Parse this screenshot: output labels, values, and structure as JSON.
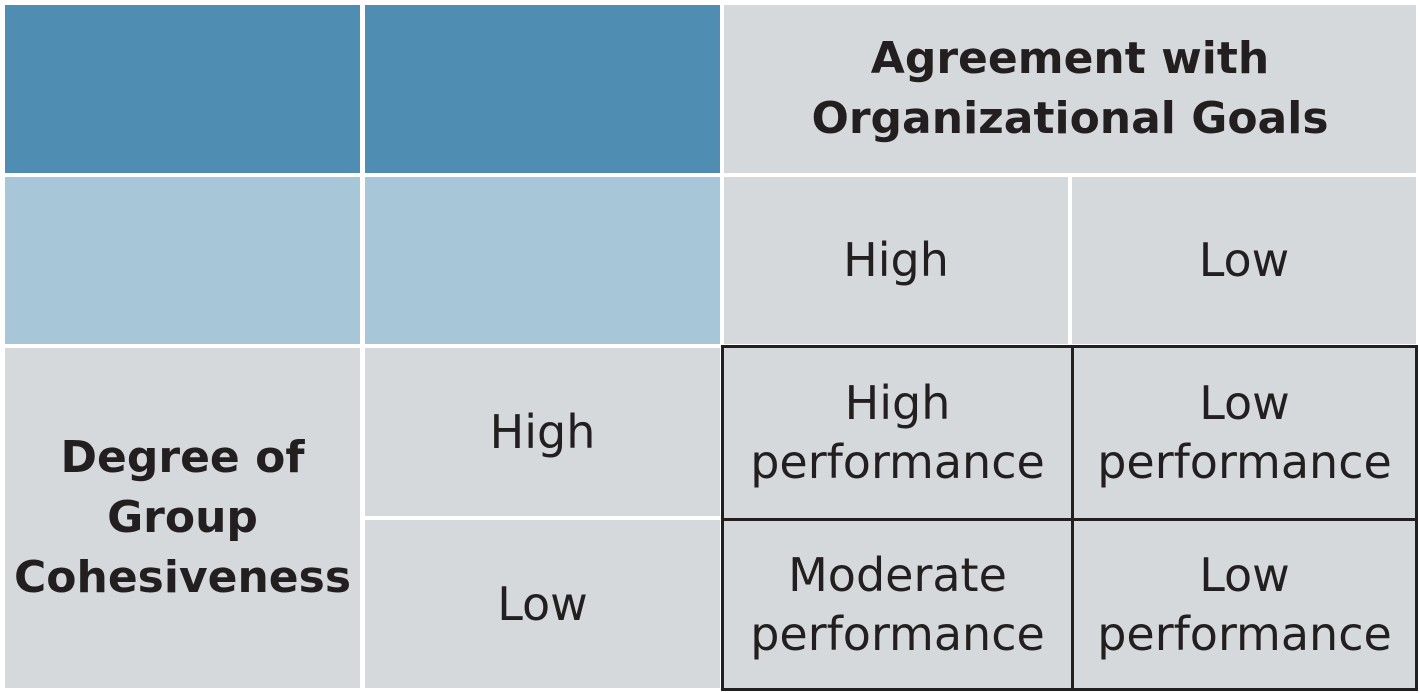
{
  "header": {
    "column_title_line1": "Agreement with",
    "column_title_line2": "Organizational Goals",
    "col_high": "High",
    "col_low": "Low"
  },
  "row_title": {
    "line1": "Degree of",
    "line2": "Group",
    "line3": "Cohesiveness"
  },
  "rows": {
    "high": "High",
    "low": "Low"
  },
  "outcomes": {
    "high_high": {
      "line1": "High",
      "line2": "performance"
    },
    "high_low": {
      "line1": "Low",
      "line2": "performance"
    },
    "low_high": {
      "line1": "Moderate",
      "line2": "performance"
    },
    "low_low": {
      "line1": "Low",
      "line2": "performance"
    }
  },
  "colors": {
    "dark_blue": "#4f8db3",
    "light_blue": "#a7c7d9",
    "grey": "#d6d9dc",
    "text": "#231f20"
  }
}
